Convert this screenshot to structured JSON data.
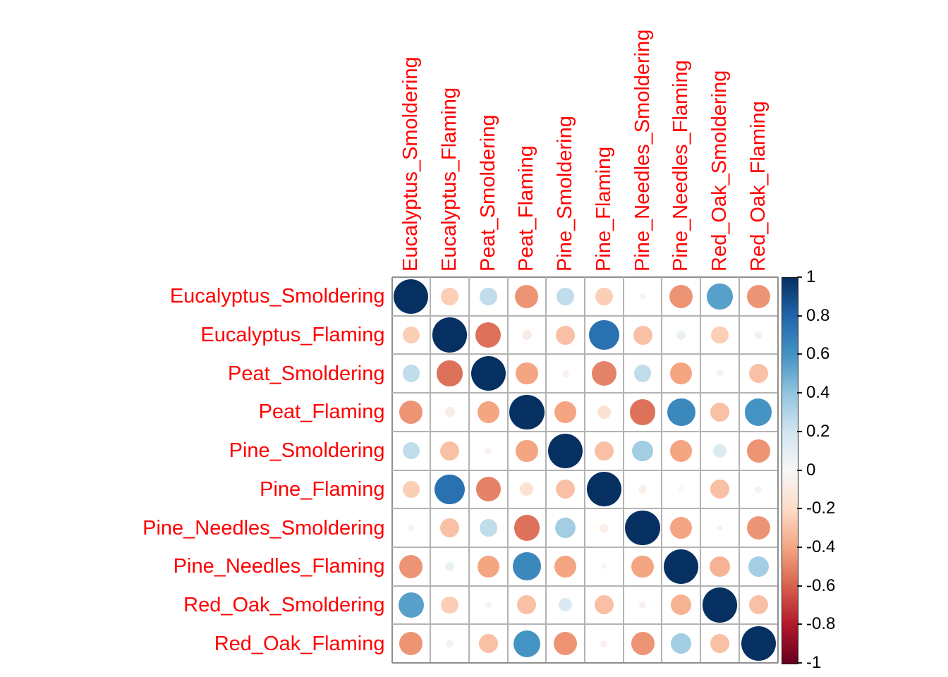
{
  "chart_data": {
    "type": "heatmap",
    "subtype": "correlation_circle_matrix",
    "title": "",
    "variables": [
      "Eucalyptus_Smoldering",
      "Eucalyptus_Flaming",
      "Peat_Smoldering",
      "Peat_Flaming",
      "Pine_Smoldering",
      "Pine_Flaming",
      "Pine_Needles_Smoldering",
      "Pine_Needles_Flaming",
      "Red_Oak_Smoldering",
      "Red_Oak_Flaming"
    ],
    "matrix": [
      [
        1,
        -0.25,
        0.25,
        -0.45,
        0.25,
        -0.25,
        -0.03,
        -0.45,
        0.55,
        -0.45
      ],
      [
        -0.25,
        1,
        -0.55,
        -0.08,
        -0.3,
        0.75,
        -0.3,
        0.07,
        -0.25,
        0.05
      ],
      [
        0.25,
        -0.55,
        1,
        -0.4,
        -0.04,
        -0.5,
        0.25,
        -0.4,
        0.03,
        -0.3
      ],
      [
        -0.45,
        -0.08,
        -0.4,
        1,
        -0.4,
        -0.15,
        -0.55,
        0.65,
        -0.3,
        0.6
      ],
      [
        0.25,
        -0.3,
        -0.04,
        -0.4,
        1,
        -0.3,
        0.35,
        -0.4,
        0.15,
        -0.45
      ],
      [
        -0.25,
        0.75,
        -0.5,
        -0.15,
        -0.3,
        1,
        -0.06,
        -0.02,
        -0.3,
        -0.04
      ],
      [
        -0.03,
        -0.3,
        0.25,
        -0.55,
        0.35,
        -0.06,
        1,
        -0.4,
        -0.04,
        -0.45
      ],
      [
        -0.45,
        0.07,
        -0.4,
        0.65,
        -0.4,
        -0.02,
        -0.4,
        1,
        -0.35,
        0.35
      ],
      [
        0.55,
        -0.25,
        0.03,
        -0.3,
        0.15,
        -0.3,
        -0.04,
        -0.35,
        1,
        -0.3
      ],
      [
        -0.45,
        0.05,
        -0.3,
        0.6,
        -0.45,
        -0.04,
        -0.45,
        0.35,
        -0.3,
        1
      ]
    ],
    "value_range": [
      -1,
      1
    ],
    "colorbar": {
      "position": "right",
      "tick_labels": [
        "1",
        "0.8",
        "0.6",
        "0.4",
        "0.2",
        "0",
        "-0.2",
        "-0.4",
        "-0.6",
        "-0.8",
        "-1"
      ],
      "tick_values": [
        1,
        0.8,
        0.6,
        0.4,
        0.2,
        0,
        -0.2,
        -0.4,
        -0.6,
        -0.8,
        -1
      ]
    },
    "palette": {
      "name": "RdBu-reversed",
      "stops_neg_to_pos": [
        "#67001F",
        "#B2182B",
        "#D6604D",
        "#F4A582",
        "#FDDBC7",
        "#F7F7F7",
        "#D1E5F0",
        "#92C5DE",
        "#4393C3",
        "#2166AC",
        "#053061"
      ]
    },
    "style": {
      "label_color": "#FF0000",
      "tick_label_color": "#000000",
      "grid_color": "#B3B3B3",
      "border_color": "#8F8F8F",
      "background": "#FFFFFF",
      "circle_max_fraction": 0.9
    },
    "grid": true,
    "legend_position": "right"
  }
}
